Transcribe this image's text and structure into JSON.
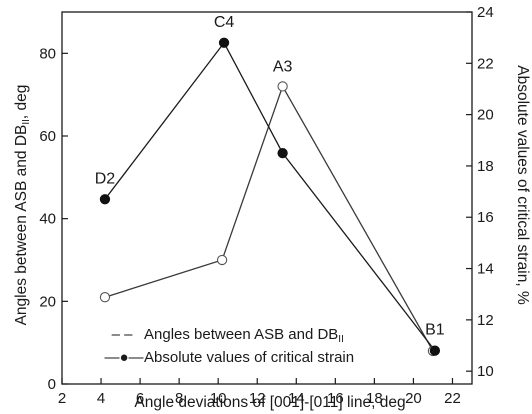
{
  "chart_data": {
    "type": "line",
    "xlabel": "Angle deviations of [001]-[011] line, deg",
    "ylabel_left": "Angles between ASB and DB",
    "ylabel_left_sub": "II",
    "ylabel_left_suffix": ", deg",
    "ylabel_right": "Absolute values of critical strain, %",
    "xlim": [
      2,
      23
    ],
    "ylim_left": [
      0,
      90
    ],
    "ylim_right": [
      9.5,
      24
    ],
    "x_ticks": [
      2,
      4,
      6,
      8,
      10,
      12,
      14,
      16,
      18,
      20,
      22
    ],
    "y_left_ticks": [
      0,
      20,
      40,
      60,
      80
    ],
    "y_right_ticks": [
      10,
      12,
      14,
      16,
      18,
      20,
      22,
      24
    ],
    "grid": false,
    "legend_position": "bottom-center",
    "series": [
      {
        "name": "Angles between ASB and DB",
        "name_sub": "II",
        "axis": "left",
        "marker": "open-circle",
        "color": "#3a3a3a",
        "points": [
          {
            "x": 4.2,
            "y": 21
          },
          {
            "x": 10.2,
            "y": 30
          },
          {
            "x": 13.3,
            "y": 72
          },
          {
            "x": 21.0,
            "y": 8
          }
        ]
      },
      {
        "name": "Absolute values of critical strain",
        "axis": "right",
        "marker": "filled-circle",
        "color": "#1a1a1a",
        "points": [
          {
            "x": 4.2,
            "y": 16.7
          },
          {
            "x": 10.3,
            "y": 22.8
          },
          {
            "x": 13.3,
            "y": 18.5
          },
          {
            "x": 21.1,
            "y": 10.8
          }
        ]
      }
    ],
    "annotations": [
      {
        "text": "D2",
        "x": 4.2
      },
      {
        "text": "C4",
        "x": 10.3
      },
      {
        "text": "A3",
        "x": 13.3
      },
      {
        "text": "B1",
        "x": 21.1
      }
    ],
    "legend": [
      {
        "symbol": "– –",
        "text": "Angles between ASB and DB",
        "sub": "II"
      },
      {
        "symbol": "—●—",
        "text": "Absolute values of critical strain"
      }
    ]
  }
}
